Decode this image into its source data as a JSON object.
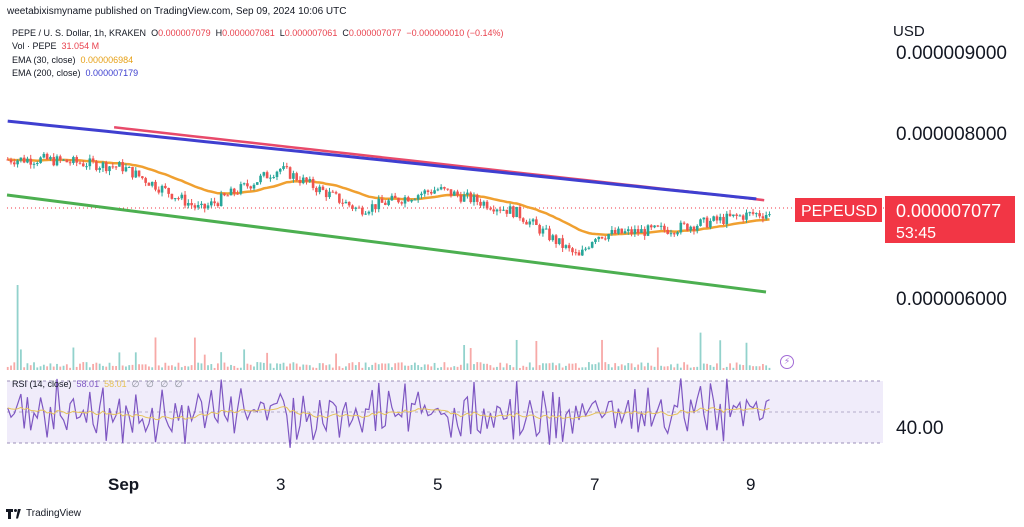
{
  "header": {
    "publisher_line": "weetabixismyname published on TradingView.com, Sep 09, 2024 10:06 UTC"
  },
  "legend": {
    "symbol": "PEPE / U. S. Dollar, 1h, KRAKEN",
    "ohlc": {
      "o_label": "O",
      "o_value": "0.000007079",
      "h_label": "H",
      "h_value": "0.000007081",
      "l_label": "L",
      "l_value": "0.000007061",
      "c_label": "C",
      "c_value": "0.000007077",
      "change": "−0.000000010 (−0.14%)"
    },
    "volume": {
      "label": "Vol · PEPE",
      "value": "31.054 M"
    },
    "ema30": {
      "label": "EMA (30, close)",
      "value": "0.000006984"
    },
    "ema200": {
      "label": "EMA (200, close)",
      "value": "0.000007179"
    }
  },
  "price_axis": {
    "currency": "USD",
    "labels": [
      "0.000009000",
      "0.000008000",
      "0.000006000"
    ]
  },
  "last_price_tag": {
    "symbol": "PEPEUSD",
    "price": "0.000007077",
    "countdown": "53:45"
  },
  "rsi": {
    "label": "RSI (14, close)",
    "value": "58.01",
    "value2": "58.01",
    "dots": "∅ ∅ ∅ ∅",
    "axis_label": "40.00"
  },
  "time_axis": [
    "Sep",
    "3",
    "5",
    "7",
    "9"
  ],
  "footer": {
    "brand": "TradingView"
  },
  "colors": {
    "up": "#26a69a",
    "down": "#ef5350",
    "ema30": "#f0a030",
    "ema200": "#3f3fd0",
    "ema_red": "#e84a6a",
    "channel_lower": "#4caf50",
    "rsi_line": "#7e57c2",
    "rsi_ma": "#e6c35a",
    "rsi_band": "#f0ecfa",
    "price_tag": "#f23645"
  },
  "chart_data": {
    "type": "candlestick",
    "title": "PEPE / U. S. Dollar, 1h, KRAKEN",
    "x_ticks": [
      "Sep",
      "3",
      "5",
      "7",
      "9"
    ],
    "ylim": [
      5.5e-06,
      9.3e-06
    ],
    "price_ticks": [
      9e-06,
      8e-06,
      6e-06
    ],
    "last_price": 7.077e-06,
    "keypoints": [
      {
        "x": "Aug 31",
        "close": 7.74e-06
      },
      {
        "x": "Sep 1",
        "close": 7.65e-06
      },
      {
        "x": "Sep 2",
        "close": 7.13e-06
      },
      {
        "x": "Sep 3",
        "close": 7.63e-06
      },
      {
        "x": "Sep 4",
        "close": 7.13e-06
      },
      {
        "x": "Sep 5",
        "close": 7.38e-06
      },
      {
        "x": "Sep 6",
        "close": 7.1e-06
      },
      {
        "x": "Sep 6.8",
        "close": 6.55e-06
      },
      {
        "x": "Sep 7",
        "close": 6.82e-06
      },
      {
        "x": "Sep 8",
        "close": 6.9e-06
      },
      {
        "x": "Sep 9",
        "close": 7.08e-06
      }
    ],
    "series": [
      {
        "name": "EMA (30, close)",
        "last": 6.984e-06
      },
      {
        "name": "EMA (200, close)",
        "last": 7.179e-06
      }
    ],
    "rsi": {
      "name": "RSI (14, close)",
      "last": 58.01,
      "bands": [
        70,
        30
      ],
      "axis_tick": 40
    },
    "grid": false
  }
}
